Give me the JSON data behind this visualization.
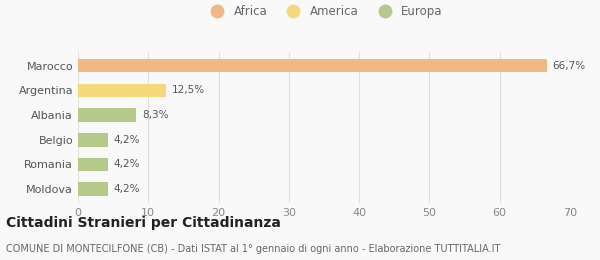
{
  "categories": [
    "Moldova",
    "Romania",
    "Belgio",
    "Albania",
    "Argentina",
    "Marocco"
  ],
  "values": [
    4.2,
    4.2,
    4.2,
    8.3,
    12.5,
    66.7
  ],
  "bar_colors": [
    "#b5c98a",
    "#b5c98a",
    "#b5c98a",
    "#b5c98a",
    "#f5d87a",
    "#f0b882"
  ],
  "bar_labels": [
    "4,2%",
    "4,2%",
    "4,2%",
    "8,3%",
    "12,5%",
    "66,7%"
  ],
  "legend": [
    {
      "label": "Africa",
      "color": "#f0b882"
    },
    {
      "label": "America",
      "color": "#f5d87a"
    },
    {
      "label": "Europa",
      "color": "#b5c98a"
    }
  ],
  "xlim": [
    0,
    70
  ],
  "xticks": [
    0,
    10,
    20,
    30,
    40,
    50,
    60,
    70
  ],
  "title": "Cittadini Stranieri per Cittadinanza",
  "subtitle": "COMUNE DI MONTECILFONE (CB) - Dati ISTAT al 1° gennaio di ogni anno - Elaborazione TUTTITALIA.IT",
  "background_color": "#f9f9f9",
  "grid_color": "#e0e0e0",
  "label_fontsize": 7.5,
  "ytick_fontsize": 8,
  "xtick_fontsize": 8,
  "title_fontsize": 10,
  "subtitle_fontsize": 7
}
